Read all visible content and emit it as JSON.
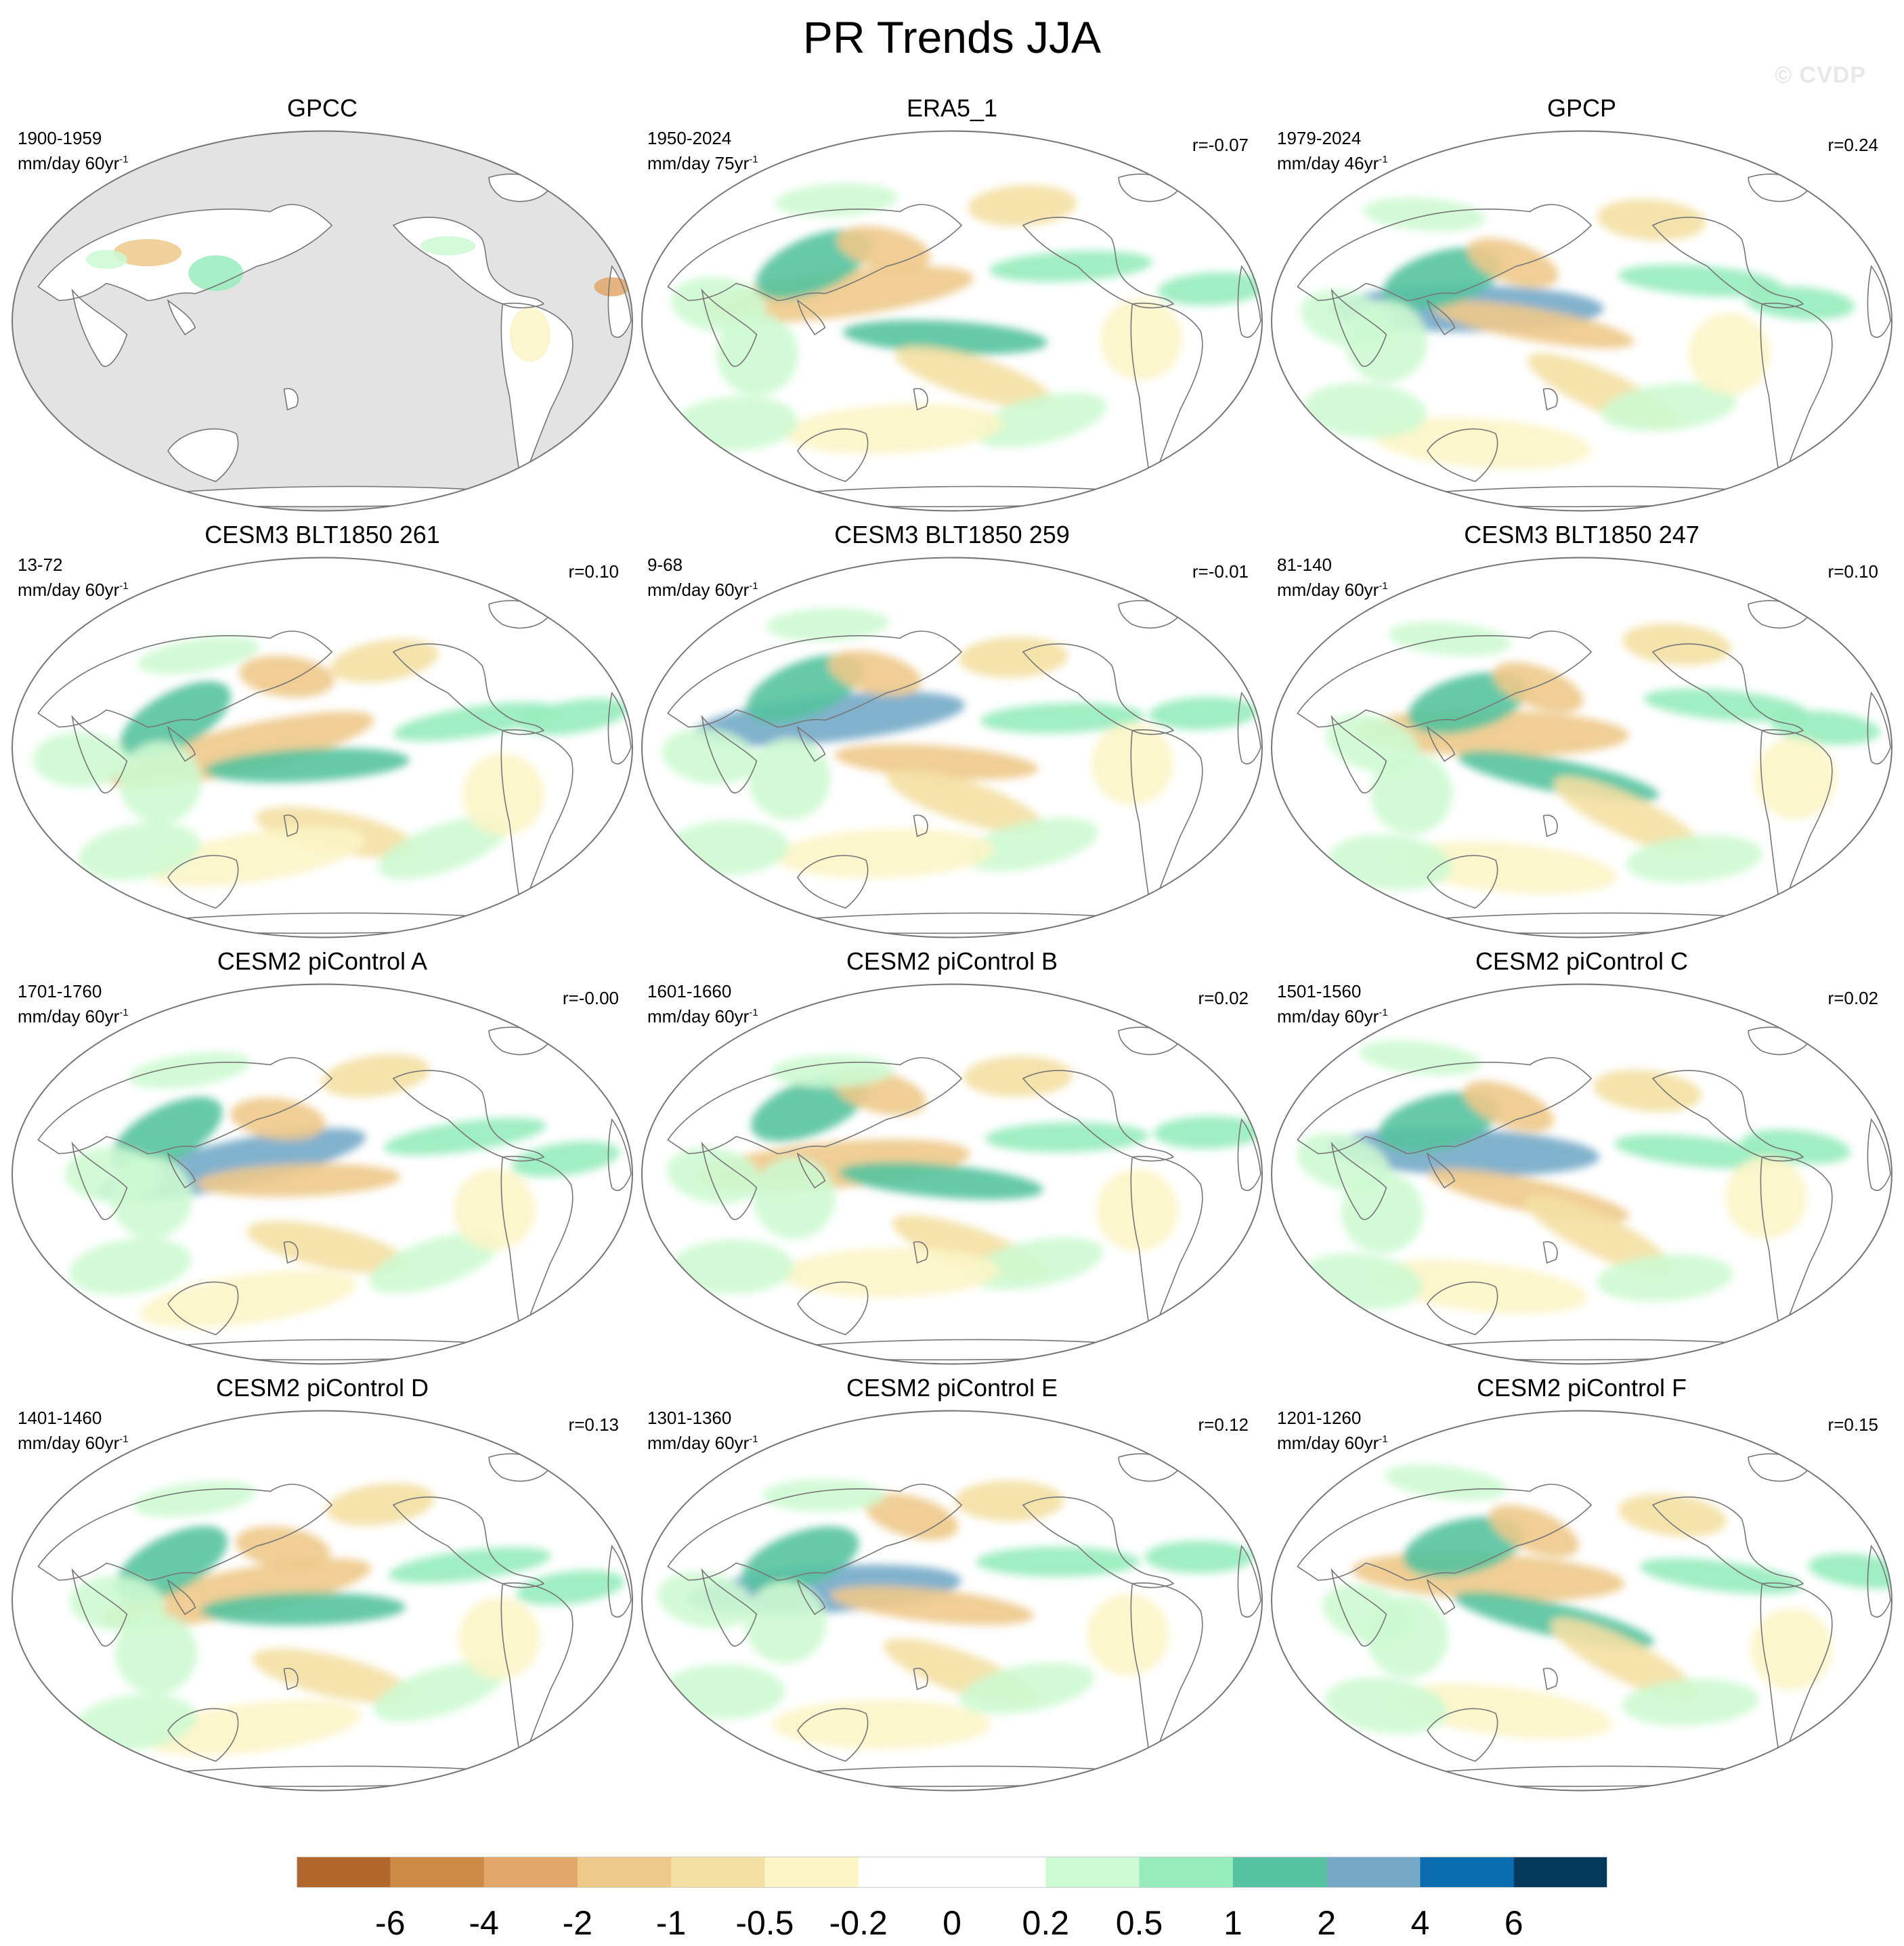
{
  "title": "PR Trends JJA",
  "watermark": "© CVDP",
  "colors": {
    "levels": [
      "#b2682d",
      "#cd8a45",
      "#e0a768",
      "#eec98a",
      "#f4e0a3",
      "#fcf5c6",
      "#ffffff",
      "#ffffff",
      "#cdfad2",
      "#96ecbd",
      "#55c39f",
      "#74aac8",
      "#0a6db0",
      "#033a5b"
    ],
    "land_mask": "#e3e3e3",
    "coast": "#777777"
  },
  "panels": [
    {
      "title": "GPCC",
      "period": "1900-1959",
      "units": "mm/day 60yr",
      "units_exp": "-1",
      "r": "",
      "masked": true
    },
    {
      "title": "ERA5_1",
      "period": "1950-2024",
      "units": "mm/day 75yr",
      "units_exp": "-1",
      "r": "r=-0.07"
    },
    {
      "title": "GPCP",
      "period": "1979-2024",
      "units": "mm/day 46yr",
      "units_exp": "-1",
      "r": "r=0.24"
    },
    {
      "title": "CESM3 BLT1850 261",
      "period": "13-72",
      "units": "mm/day 60yr",
      "units_exp": "-1",
      "r": "r=0.10"
    },
    {
      "title": "CESM3 BLT1850 259",
      "period": "9-68",
      "units": "mm/day 60yr",
      "units_exp": "-1",
      "r": "r=-0.01"
    },
    {
      "title": "CESM3 BLT1850 247",
      "period": "81-140",
      "units": "mm/day 60yr",
      "units_exp": "-1",
      "r": "r=0.10"
    },
    {
      "title": "CESM2 piControl A",
      "period": "1701-1760",
      "units": "mm/day 60yr",
      "units_exp": "-1",
      "r": "r=-0.00"
    },
    {
      "title": "CESM2 piControl B",
      "period": "1601-1660",
      "units": "mm/day 60yr",
      "units_exp": "-1",
      "r": "r=0.02"
    },
    {
      "title": "CESM2 piControl C",
      "period": "1501-1560",
      "units": "mm/day 60yr",
      "units_exp": "-1",
      "r": "r=0.02"
    },
    {
      "title": "CESM2 piControl D",
      "period": "1401-1460",
      "units": "mm/day 60yr",
      "units_exp": "-1",
      "r": "r=0.13"
    },
    {
      "title": "CESM2 piControl E",
      "period": "1301-1360",
      "units": "mm/day 60yr",
      "units_exp": "-1",
      "r": "r=0.12"
    },
    {
      "title": "CESM2 piControl F",
      "period": "1201-1260",
      "units": "mm/day 60yr",
      "units_exp": "-1",
      "r": "r=0.15"
    }
  ],
  "colorbar": {
    "labels": [
      "-6",
      "-4",
      "-2",
      "-1",
      "-0.5",
      "-0.2",
      "0",
      "0.2",
      "0.5",
      "1",
      "2",
      "4",
      "6"
    ]
  }
}
